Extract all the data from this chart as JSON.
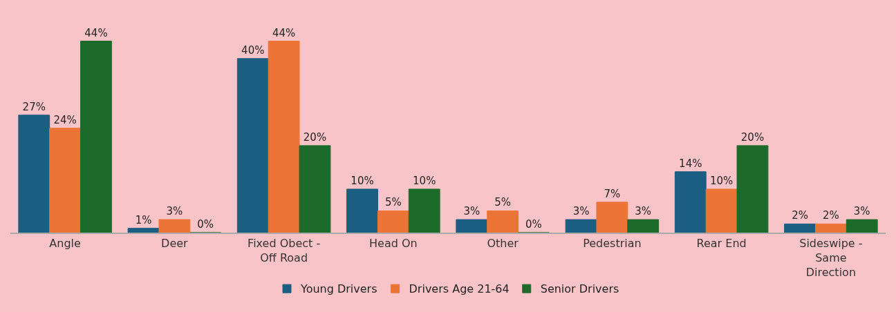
{
  "chart_data": {
    "type": "bar",
    "categories": [
      "Angle",
      "Deer",
      "Fixed Obect - Off Road",
      "Head On",
      "Other",
      "Pedestrian",
      "Rear End",
      "Sideswipe - Same Direction"
    ],
    "series": [
      {
        "name": "Young Drivers",
        "color": "#1b5e82",
        "values": [
          27,
          1,
          40,
          10,
          3,
          3,
          14,
          2
        ],
        "value_labels": [
          "27%",
          "1%",
          "40%",
          "10%",
          "3%",
          "3%",
          "14%",
          "2%"
        ]
      },
      {
        "name": "Drivers Age 21-64",
        "color": "#ec7436",
        "values": [
          24,
          3,
          44,
          5,
          5,
          7,
          10,
          2
        ],
        "value_labels": [
          "24%",
          "3%",
          "44%",
          "5%",
          "5%",
          "7%",
          "10%",
          "2%"
        ]
      },
      {
        "name": "Senior Drivers",
        "color": "#1c6b2a",
        "values": [
          44,
          0,
          20,
          10,
          0,
          3,
          20,
          3
        ],
        "value_labels": [
          "44%",
          "0%",
          "20%",
          "10%",
          "0%",
          "3%",
          "20%",
          "3%"
        ]
      }
    ],
    "legend": "bottom"
  }
}
